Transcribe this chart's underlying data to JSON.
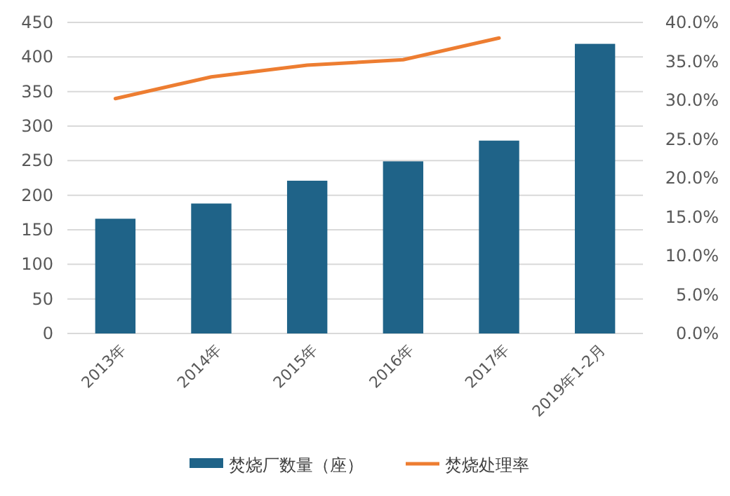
{
  "chart_data": {
    "type": "bar",
    "categories": [
      "2013年",
      "2014年",
      "2015年",
      "2016年",
      "2017年",
      "2019年1-2月"
    ],
    "series": [
      {
        "name": "焚烧厂数量（座）",
        "color": "#1f6388",
        "values": [
          166,
          188,
          221,
          249,
          279,
          419
        ]
      },
      {
        "name": "焚烧处理率",
        "type": "line",
        "axis": "y2",
        "color": "#ed7d31",
        "values": [
          30.2,
          33.0,
          34.5,
          35.2,
          38.0,
          null
        ]
      }
    ],
    "ylim": [
      0,
      450
    ],
    "yticks": [
      0,
      50,
      100,
      150,
      200,
      250,
      300,
      350,
      400,
      450
    ],
    "y2lim": [
      0,
      40
    ],
    "y2ticks": [
      {
        "value": 0,
        "label": "0.0%"
      },
      {
        "value": 5,
        "label": "5.0%"
      },
      {
        "value": 10,
        "label": "10.0%"
      },
      {
        "value": 15,
        "label": "15.0%"
      },
      {
        "value": 20,
        "label": "20.0%"
      },
      {
        "value": 25,
        "label": "25.0%"
      },
      {
        "value": 30,
        "label": "30.0%"
      },
      {
        "value": 35,
        "label": "35.0%"
      },
      {
        "value": 40,
        "label": "40.0%"
      }
    ],
    "grid": "y",
    "legend": "bottom"
  }
}
